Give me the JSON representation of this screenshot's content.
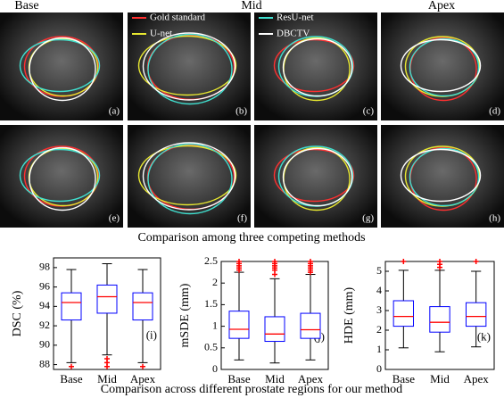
{
  "images": {
    "columns": [
      "Base",
      "Mid",
      "Apex"
    ],
    "legend": [
      {
        "name": "Gold standard",
        "color": "#ff3030"
      },
      {
        "name": "U-net",
        "color": "#e8e830"
      },
      {
        "name": "ResU-net",
        "color": "#40e0d0"
      },
      {
        "name": "DBCTV",
        "color": "#ffffff"
      }
    ],
    "panels": [
      "(a)",
      "(b)",
      "(c)",
      "(d)",
      "(e)",
      "(f)",
      "(g)",
      "(h)"
    ],
    "caption": "Comparison among three competing methods"
  },
  "chart_data": [
    {
      "type": "box",
      "ylabel": "DSC (%)",
      "panel": "(i)",
      "categories": [
        "Base",
        "Mid",
        "Apex"
      ],
      "ylim": [
        87.5,
        99
      ],
      "yticks": [
        88,
        90,
        92,
        94,
        96,
        98
      ],
      "box_color": "#0000ff",
      "median_color": "#ff0000",
      "outlier_color": "#ff0000",
      "boxes": [
        {
          "low": 88.2,
          "q1": 92.6,
          "median": 94.4,
          "q3": 95.4,
          "high": 97.8,
          "outliers": [
            87.8
          ]
        },
        {
          "low": 89.0,
          "q1": 93.3,
          "median": 95.0,
          "q3": 96.2,
          "high": 98.4,
          "outliers": [
            88.6,
            88.2,
            87.8
          ]
        },
        {
          "low": 88.2,
          "q1": 92.6,
          "median": 94.4,
          "q3": 95.4,
          "high": 97.8,
          "outliers": [
            87.8
          ]
        }
      ]
    },
    {
      "type": "box",
      "ylabel": "mSDE (mm)",
      "panel": "(j)",
      "categories": [
        "Base",
        "Mid",
        "Apex"
      ],
      "ylim": [
        0,
        2.5
      ],
      "yticks": [
        0,
        0.5,
        1,
        1.5,
        2,
        2.5
      ],
      "box_color": "#0000ff",
      "median_color": "#ff0000",
      "outlier_color": "#ff0000",
      "boxes": [
        {
          "low": 0.22,
          "q1": 0.72,
          "median": 0.93,
          "q3": 1.35,
          "high": 2.25,
          "outliers": [
            2.3,
            2.35,
            2.4,
            2.45,
            2.5
          ]
        },
        {
          "low": 0.15,
          "q1": 0.65,
          "median": 0.82,
          "q3": 1.22,
          "high": 2.1,
          "outliers": [
            2.2,
            2.3,
            2.35,
            2.4,
            2.45,
            2.5
          ]
        },
        {
          "low": 0.22,
          "q1": 0.72,
          "median": 0.92,
          "q3": 1.3,
          "high": 2.2,
          "outliers": [
            2.25,
            2.3,
            2.35,
            2.4,
            2.45,
            2.5
          ]
        }
      ]
    },
    {
      "type": "box",
      "ylabel": "HDE (mm)",
      "panel": "(k)",
      "categories": [
        "Base",
        "Mid",
        "Apex"
      ],
      "ylim": [
        0,
        5.5
      ],
      "yticks": [
        0,
        1,
        2,
        3,
        4,
        5
      ],
      "box_color": "#0000ff",
      "median_color": "#ff0000",
      "outlier_color": "#ff0000",
      "boxes": [
        {
          "low": 1.1,
          "q1": 2.2,
          "median": 2.7,
          "q3": 3.5,
          "high": 5.05,
          "outliers": [
            5.5
          ]
        },
        {
          "low": 0.9,
          "q1": 1.9,
          "median": 2.4,
          "q3": 3.2,
          "high": 5.05,
          "outliers": [
            5.2,
            5.35,
            5.5
          ]
        },
        {
          "low": 1.15,
          "q1": 2.2,
          "median": 2.7,
          "q3": 3.4,
          "high": 5.0,
          "outliers": [
            5.5
          ]
        }
      ]
    }
  ],
  "caption": "Comparison across different prostate regions for our method"
}
